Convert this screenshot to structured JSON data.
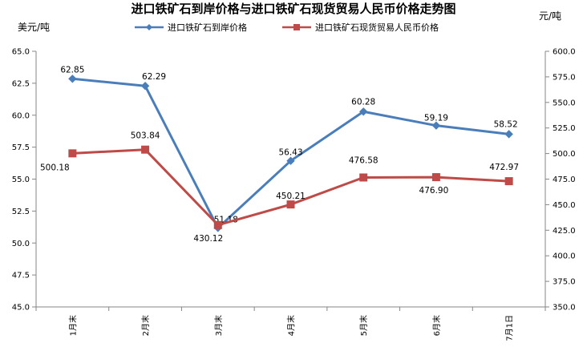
{
  "chart_data": {
    "type": "line",
    "title": "进口铁矿石到岸价格与进口铁矿石现货贸易人民币价格走势图",
    "y_left_unit": "美元/吨",
    "y_right_unit": "元/吨",
    "categories": [
      "1月末",
      "2月末",
      "3月末",
      "4月末",
      "5月末",
      "6月末",
      "7月1日"
    ],
    "y_left": {
      "min": 45.0,
      "max": 65.0,
      "step": 2.5,
      "ticks": [
        "45.0",
        "47.5",
        "50.0",
        "52.5",
        "55.0",
        "57.5",
        "60.0",
        "62.5",
        "65.0"
      ]
    },
    "y_right": {
      "min": 350.0,
      "max": 600.0,
      "step": 25.0,
      "ticks": [
        "350.0",
        "375.0",
        "400.0",
        "425.0",
        "450.0",
        "475.0",
        "500.0",
        "525.0",
        "550.0",
        "575.0",
        "600.0"
      ]
    },
    "series": [
      {
        "name": "进口铁矿石到岸价格",
        "axis": "left",
        "color": "#4a7ebb",
        "marker": "diamond",
        "values": [
          62.85,
          62.29,
          51.18,
          56.43,
          60.28,
          59.19,
          58.52
        ],
        "labels": [
          "62.85",
          "62.29",
          "51.18",
          "56.43",
          "60.28",
          "59.19",
          "58.52"
        ]
      },
      {
        "name": "进口铁矿石现货贸易人民币价格",
        "axis": "right",
        "color": "#be4b48",
        "marker": "square",
        "values": [
          500.18,
          503.84,
          430.12,
          450.21,
          476.58,
          476.9,
          472.97
        ],
        "labels": [
          "500.18",
          "503.84",
          "430.12",
          "450.21",
          "476.58",
          "476.90",
          "472.97"
        ]
      }
    ],
    "legend_position": "top-center",
    "grid": false
  }
}
